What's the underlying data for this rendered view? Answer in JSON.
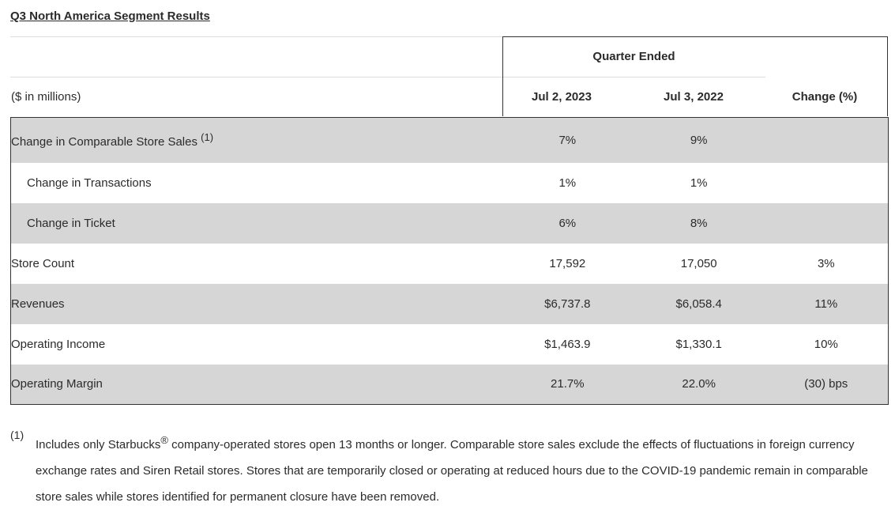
{
  "title": "Q3 North America Segment Results",
  "header": {
    "quarter_ended": "Quarter Ended",
    "units": "($ in millions)",
    "col1": "Jul 2, 2023",
    "col2": "Jul 3, 2022",
    "col3": "Change (%)"
  },
  "rows": [
    {
      "label": "Change in Comparable Store Sales",
      "note": "(1)",
      "c1": "7%",
      "c2": "9%",
      "c3": ""
    },
    {
      "label": "Change in Transactions",
      "c1": "1%",
      "c2": "1%",
      "c3": ""
    },
    {
      "label": "Change in Ticket",
      "c1": "6%",
      "c2": "8%",
      "c3": ""
    },
    {
      "label": "Store Count",
      "c1": "17,592",
      "c2": "17,050",
      "c3": "3%"
    },
    {
      "label": "Revenues",
      "c1": "$6,737.8",
      "c2": "$6,058.4",
      "c3": "11%"
    },
    {
      "label": "Operating Income",
      "c1": "$1,463.9",
      "c2": "$1,330.1",
      "c3": "10%"
    },
    {
      "label": "Operating Margin",
      "c1": "21.7%",
      "c2": "22.0%",
      "c3": "(30) bps"
    }
  ],
  "footnote": {
    "mark": "(1)",
    "text_before": "Includes only Starbucks",
    "registered": "®",
    "text_after": " company-operated stores open 13 months or longer. Comparable store sales exclude the effects of fluctuations in foreign currency exchange rates and Siren Retail stores. Stores that are temporarily closed or operating at reduced hours due to the COVID-19 pandemic remain in comparable store sales while stores identified for permanent closure have been removed."
  }
}
